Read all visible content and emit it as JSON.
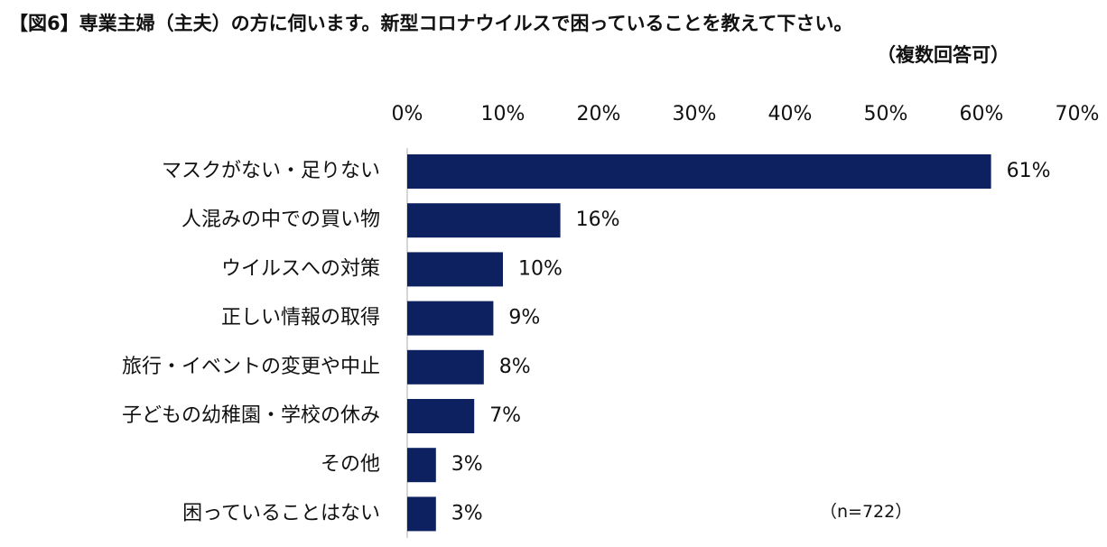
{
  "chart_data": {
    "type": "bar",
    "orientation": "horizontal",
    "title": "【図6】専業主婦（主夫）の方に伺います。新型コロナウイルスで困っていることを教えて下さい。",
    "subtitle": "（複数回答可）",
    "note": "（n=722）",
    "categories": [
      "マスクがない・足りない",
      "人混みの中での買い物",
      "ウイルスへの対策",
      "正しい情報の取得",
      "旅行・イベントの変更や中止",
      "子どもの幼稚園・学校の休み",
      "その他",
      "困っていることはない"
    ],
    "values": [
      61,
      16,
      10,
      9,
      8,
      7,
      3,
      3
    ],
    "value_labels": [
      "61%",
      "16%",
      "10%",
      "9%",
      "8%",
      "7%",
      "3%",
      "3%"
    ],
    "xlim": [
      0,
      70
    ],
    "xticks": [
      0,
      10,
      20,
      30,
      40,
      50,
      60,
      70
    ],
    "xtick_labels": [
      "0%",
      "10%",
      "20%",
      "30%",
      "40%",
      "50%",
      "60%",
      "70%"
    ],
    "xlabel": "",
    "ylabel": "",
    "grid": false,
    "axis_position": "top",
    "bar_color": "#0d2161"
  }
}
